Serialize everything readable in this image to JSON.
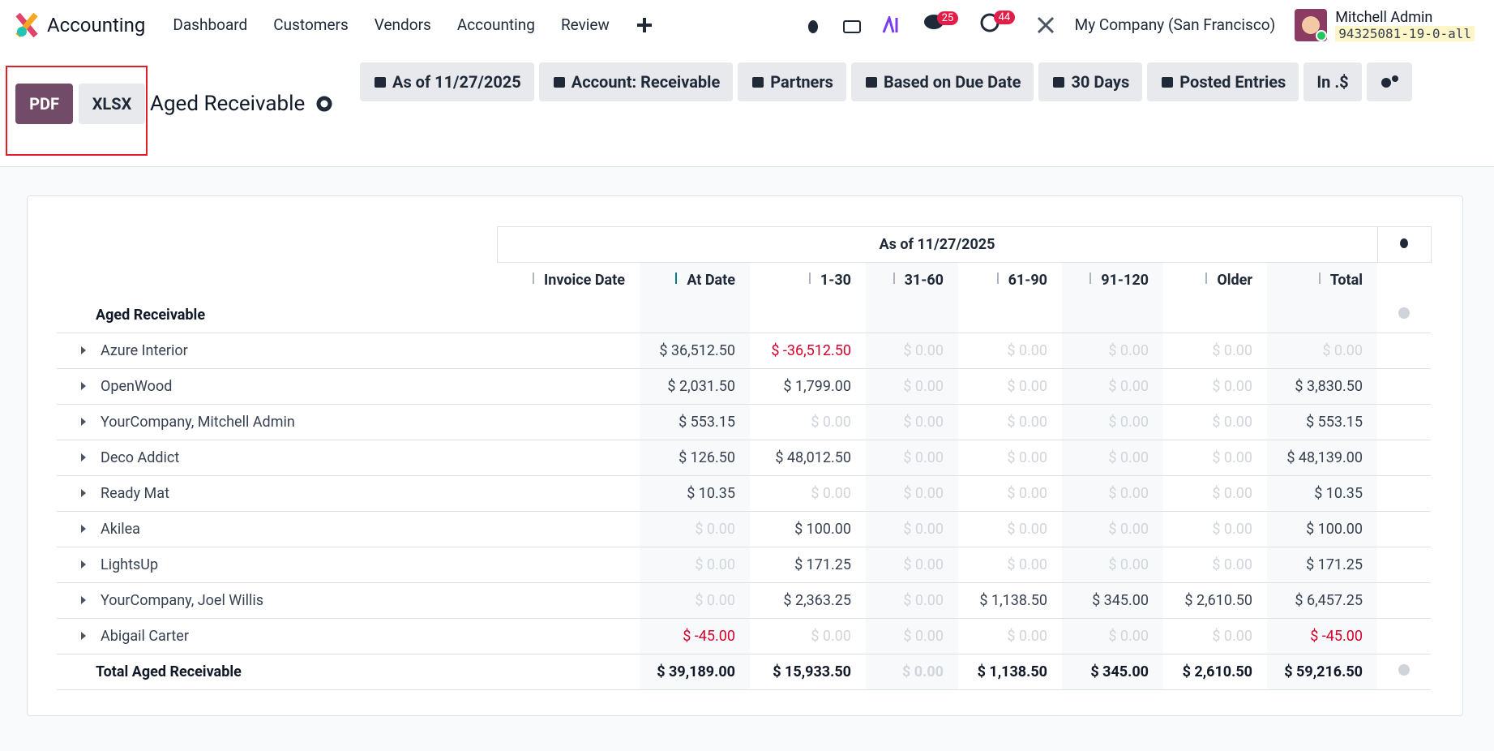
{
  "nav": {
    "app": "Accounting",
    "menu": [
      "Dashboard",
      "Customers",
      "Vendors",
      "Accounting",
      "Review"
    ],
    "badges": [
      "25",
      "44"
    ],
    "company": "My Company (San Francisco)",
    "user": "Mitchell Admin",
    "db": "94325081-19-0-all"
  },
  "control": {
    "buttons": [
      "PDF",
      "XLSX"
    ],
    "title": "Aged Receivable",
    "filters": [
      "As of 11/27/2025",
      "Account: Receivable",
      "Partners",
      "Based on Due Date",
      "30 Days",
      "Posted Entries",
      "In .$"
    ]
  },
  "table": {
    "period": "As of 11/27/2025",
    "columns": [
      "Invoice Date",
      "At Date",
      "1-30",
      "31-60",
      "61-90",
      "91-120",
      "Older",
      "Total"
    ],
    "section": "Aged Receivable",
    "rows": [
      {
        "name": "Azure Interior",
        "values": [
          "$ 36,512.50",
          "$ -36,512.50",
          "$ 0.00",
          "$ 0.00",
          "$ 0.00",
          "$ 0.00",
          "$ 0.00"
        ]
      },
      {
        "name": "OpenWood",
        "values": [
          "$ 2,031.50",
          "$ 1,799.00",
          "$ 0.00",
          "$ 0.00",
          "$ 0.00",
          "$ 0.00",
          "$ 3,830.50"
        ]
      },
      {
        "name": "YourCompany, Mitchell Admin",
        "values": [
          "$ 553.15",
          "$ 0.00",
          "$ 0.00",
          "$ 0.00",
          "$ 0.00",
          "$ 0.00",
          "$ 553.15"
        ]
      },
      {
        "name": "Deco Addict",
        "values": [
          "$ 126.50",
          "$ 48,012.50",
          "$ 0.00",
          "$ 0.00",
          "$ 0.00",
          "$ 0.00",
          "$ 48,139.00"
        ]
      },
      {
        "name": "Ready Mat",
        "values": [
          "$ 10.35",
          "$ 0.00",
          "$ 0.00",
          "$ 0.00",
          "$ 0.00",
          "$ 0.00",
          "$ 10.35"
        ]
      },
      {
        "name": "Akilea",
        "values": [
          "$ 0.00",
          "$ 100.00",
          "$ 0.00",
          "$ 0.00",
          "$ 0.00",
          "$ 0.00",
          "$ 100.00"
        ]
      },
      {
        "name": "LightsUp",
        "values": [
          "$ 0.00",
          "$ 171.25",
          "$ 0.00",
          "$ 0.00",
          "$ 0.00",
          "$ 0.00",
          "$ 171.25"
        ]
      },
      {
        "name": "YourCompany, Joel Willis",
        "values": [
          "$ 0.00",
          "$ 2,363.25",
          "$ 0.00",
          "$ 1,138.50",
          "$ 345.00",
          "$ 2,610.50",
          "$ 6,457.25"
        ]
      },
      {
        "name": "Abigail Carter",
        "values": [
          "$ -45.00",
          "$ 0.00",
          "$ 0.00",
          "$ 0.00",
          "$ 0.00",
          "$ 0.00",
          "$ -45.00"
        ]
      }
    ],
    "total": {
      "name": "Total Aged Receivable",
      "values": [
        "$ 39,189.00",
        "$ 15,933.50",
        "$ 0.00",
        "$ 1,138.50",
        "$ 345.00",
        "$ 2,610.50",
        "$ 59,216.50"
      ]
    }
  }
}
